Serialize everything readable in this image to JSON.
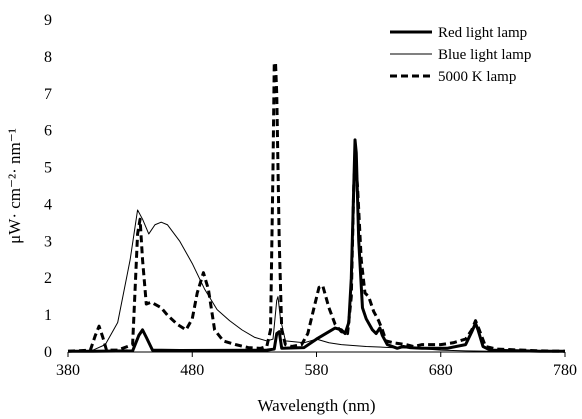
{
  "chart_data": {
    "type": "line",
    "title": "",
    "xlabel": "Wavelength (nm)",
    "ylabel": "μW· cm⁻²· nm⁻¹",
    "xlim": [
      380,
      780
    ],
    "ylim": [
      0,
      9
    ],
    "xticks": [
      380,
      480,
      580,
      680,
      780
    ],
    "yticks": [
      0,
      1,
      2,
      3,
      4,
      5,
      6,
      7,
      8,
      9
    ],
    "grid": false,
    "legend_position": "top-right",
    "series": [
      {
        "name": "Red light lamp",
        "style": "thick-solid",
        "color": "#000000",
        "points": [
          [
            380,
            0.02
          ],
          [
            400,
            0.02
          ],
          [
            432,
            0.03
          ],
          [
            437,
            0.45
          ],
          [
            440,
            0.6
          ],
          [
            443,
            0.4
          ],
          [
            448,
            0.05
          ],
          [
            470,
            0.04
          ],
          [
            540,
            0.05
          ],
          [
            546,
            0.08
          ],
          [
            548,
            0.5
          ],
          [
            550,
            0.55
          ],
          [
            552,
            0.1
          ],
          [
            570,
            0.12
          ],
          [
            580,
            0.35
          ],
          [
            590,
            0.55
          ],
          [
            595,
            0.65
          ],
          [
            600,
            0.6
          ],
          [
            603,
            0.5
          ],
          [
            606,
            0.8
          ],
          [
            608,
            2.0
          ],
          [
            610,
            4.5
          ],
          [
            611,
            5.75
          ],
          [
            612,
            5.4
          ],
          [
            614,
            3.0
          ],
          [
            617,
            1.2
          ],
          [
            620,
            0.9
          ],
          [
            625,
            0.6
          ],
          [
            628,
            0.5
          ],
          [
            631,
            0.65
          ],
          [
            633,
            0.45
          ],
          [
            637,
            0.2
          ],
          [
            645,
            0.1
          ],
          [
            650,
            0.15
          ],
          [
            655,
            0.12
          ],
          [
            665,
            0.1
          ],
          [
            685,
            0.1
          ],
          [
            700,
            0.2
          ],
          [
            705,
            0.55
          ],
          [
            708,
            0.78
          ],
          [
            710,
            0.6
          ],
          [
            714,
            0.15
          ],
          [
            720,
            0.05
          ],
          [
            760,
            0.02
          ],
          [
            780,
            0.02
          ]
        ]
      },
      {
        "name": "Blue light lamp",
        "style": "thin-solid",
        "color": "#000000",
        "points": [
          [
            380,
            0.0
          ],
          [
            400,
            0.05
          ],
          [
            410,
            0.2
          ],
          [
            420,
            0.8
          ],
          [
            430,
            2.5
          ],
          [
            436,
            3.85
          ],
          [
            440,
            3.6
          ],
          [
            445,
            3.2
          ],
          [
            450,
            3.45
          ],
          [
            455,
            3.52
          ],
          [
            460,
            3.45
          ],
          [
            470,
            3.0
          ],
          [
            480,
            2.4
          ],
          [
            490,
            1.7
          ],
          [
            500,
            1.15
          ],
          [
            510,
            0.85
          ],
          [
            520,
            0.6
          ],
          [
            530,
            0.4
          ],
          [
            540,
            0.3
          ],
          [
            545,
            0.35
          ],
          [
            548,
            1.4
          ],
          [
            549,
            1.5
          ],
          [
            551,
            0.9
          ],
          [
            555,
            0.3
          ],
          [
            570,
            0.25
          ],
          [
            575,
            0.3
          ],
          [
            580,
            0.35
          ],
          [
            590,
            0.25
          ],
          [
            600,
            0.2
          ],
          [
            620,
            0.15
          ],
          [
            640,
            0.12
          ],
          [
            660,
            0.1
          ],
          [
            680,
            0.05
          ],
          [
            700,
            0.03
          ],
          [
            720,
            0.02
          ],
          [
            780,
            0.0
          ]
        ]
      },
      {
        "name": "5000 K lamp",
        "style": "dashed",
        "color": "#000000",
        "points": [
          [
            380,
            0.02
          ],
          [
            398,
            0.05
          ],
          [
            402,
            0.45
          ],
          [
            405,
            0.7
          ],
          [
            408,
            0.4
          ],
          [
            411,
            0.05
          ],
          [
            420,
            0.05
          ],
          [
            432,
            0.2
          ],
          [
            436,
            3.2
          ],
          [
            438,
            3.6
          ],
          [
            440,
            2.5
          ],
          [
            443,
            1.3
          ],
          [
            447,
            1.35
          ],
          [
            455,
            1.2
          ],
          [
            460,
            1.0
          ],
          [
            468,
            0.75
          ],
          [
            475,
            0.6
          ],
          [
            480,
            0.9
          ],
          [
            484,
            1.6
          ],
          [
            489,
            2.15
          ],
          [
            493,
            1.7
          ],
          [
            498,
            0.6
          ],
          [
            505,
            0.3
          ],
          [
            515,
            0.2
          ],
          [
            525,
            0.12
          ],
          [
            535,
            0.1
          ],
          [
            540,
            0.15
          ],
          [
            543,
            0.6
          ],
          [
            545,
            5.0
          ],
          [
            546,
            7.8
          ],
          [
            547,
            7.85
          ],
          [
            548,
            7.0
          ],
          [
            550,
            3.0
          ],
          [
            552,
            0.6
          ],
          [
            555,
            0.2
          ],
          [
            560,
            0.15
          ],
          [
            568,
            0.2
          ],
          [
            573,
            0.5
          ],
          [
            578,
            1.2
          ],
          [
            582,
            1.75
          ],
          [
            585,
            1.8
          ],
          [
            590,
            1.2
          ],
          [
            595,
            0.75
          ],
          [
            600,
            0.55
          ],
          [
            605,
            0.5
          ],
          [
            608,
            1.5
          ],
          [
            610,
            4.5
          ],
          [
            611,
            5.25
          ],
          [
            613,
            4.5
          ],
          [
            616,
            2.5
          ],
          [
            619,
            1.6
          ],
          [
            622,
            1.5
          ],
          [
            626,
            1.1
          ],
          [
            630,
            0.85
          ],
          [
            633,
            0.6
          ],
          [
            636,
            0.3
          ],
          [
            642,
            0.25
          ],
          [
            652,
            0.2
          ],
          [
            658,
            0.15
          ],
          [
            665,
            0.2
          ],
          [
            680,
            0.2
          ],
          [
            690,
            0.25
          ],
          [
            700,
            0.35
          ],
          [
            705,
            0.6
          ],
          [
            708,
            0.85
          ],
          [
            711,
            0.6
          ],
          [
            716,
            0.15
          ],
          [
            725,
            0.08
          ],
          [
            760,
            0.03
          ],
          [
            780,
            0.02
          ]
        ]
      }
    ]
  }
}
